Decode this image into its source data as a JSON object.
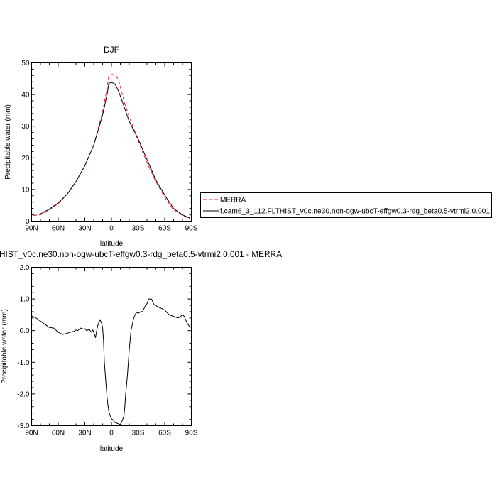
{
  "colors": {
    "merra": "#e8212a",
    "model": "#000000",
    "axes": "#000000",
    "legend_border": "#000000"
  },
  "chart_data": [
    {
      "type": "line",
      "title": "DJF",
      "xlabel": "latitude",
      "ylabel": "Precipitable water (mm)",
      "xlim": [
        90,
        -90
      ],
      "ylim": [
        0,
        50
      ],
      "xtick_labels": [
        "90N",
        "60N",
        "30N",
        "0",
        "30S",
        "60S",
        "90S"
      ],
      "ytick_labels": [
        "0",
        "10",
        "20",
        "30",
        "40",
        "50"
      ],
      "legend": {
        "placement": "right",
        "entries": [
          "MERRA",
          "f.cam6_3_112.FLTHIST_v0c.ne30.non-ogw-ubcT-effgw0.3-rdg_beta0.5-vtrmi2.0.001"
        ]
      },
      "series": [
        {
          "name": "MERRA",
          "style": "dashed",
          "color": "#e8212a",
          "x": [
            88,
            80,
            70,
            60,
            50,
            40,
            30,
            20,
            10,
            5,
            3,
            0,
            -3,
            -5,
            -8,
            -10,
            -15,
            -20,
            -30,
            -40,
            -50,
            -60,
            -70,
            -80,
            -88
          ],
          "y": [
            1.8,
            2.0,
            3.5,
            5.5,
            8.5,
            12.5,
            17.5,
            24.0,
            34.5,
            42.0,
            46.0,
            46.3,
            46.3,
            46.0,
            44.5,
            42.5,
            37.0,
            33.0,
            25.5,
            18.5,
            12.5,
            7.5,
            3.5,
            1.8,
            0.8
          ]
        },
        {
          "name": "f.cam6_3_112.FLTHIST_v0c.ne30.non-ogw-ubcT-effgw0.3-rdg_beta0.5-vtrmi2.0.001",
          "style": "solid",
          "color": "#000000",
          "x": [
            88,
            80,
            70,
            60,
            50,
            40,
            30,
            20,
            10,
            5,
            3,
            0,
            -3,
            -5,
            -8,
            -10,
            -15,
            -20,
            -30,
            -40,
            -50,
            -60,
            -70,
            -80,
            -88
          ],
          "y": [
            2.2,
            2.3,
            3.8,
            5.8,
            8.5,
            12.5,
            17.5,
            24.0,
            33.5,
            40.0,
            43.5,
            43.8,
            43.5,
            42.8,
            41.0,
            39.5,
            35.5,
            31.5,
            26.0,
            19.5,
            13.0,
            8.2,
            4.0,
            2.0,
            1.0
          ]
        }
      ]
    },
    {
      "type": "line",
      "title": "HIST_v0c.ne30.non-ogw-ubcT-effgw0.3-rdg_beta0.5-vtrmi2.0.001 - MERRA",
      "xlabel": "latitude",
      "ylabel": "Precipitable water (mm)",
      "xlim": [
        90,
        -90
      ],
      "ylim": [
        -3.0,
        2.0
      ],
      "xtick_labels": [
        "90N",
        "60N",
        "30N",
        "0",
        "30S",
        "60S",
        "90S"
      ],
      "ytick_labels": [
        "-3.0",
        "-2.0",
        "-1.0",
        "0.0",
        "1.0",
        "2.0"
      ],
      "series": [
        {
          "style": "solid",
          "color": "#000000",
          "x": [
            90,
            85,
            80,
            75,
            70,
            65,
            60,
            55,
            50,
            45,
            42,
            40,
            38,
            35,
            32,
            30,
            28,
            25,
            23,
            21,
            20,
            18,
            16,
            15,
            13,
            11,
            10,
            9,
            8,
            6,
            5,
            4,
            3,
            2,
            0,
            -2,
            -4,
            -6,
            -8,
            -10,
            -12,
            -14,
            -15,
            -16,
            -18,
            -20,
            -22,
            -25,
            -28,
            -30,
            -33,
            -35,
            -38,
            -40,
            -42,
            -45,
            -48,
            -50,
            -52,
            -55,
            -60,
            -65,
            -70,
            -75,
            -78,
            -80,
            -82,
            -85,
            -88,
            -90
          ],
          "y": [
            0.47,
            0.4,
            0.3,
            0.2,
            0.1,
            0.08,
            -0.05,
            -0.12,
            -0.08,
            -0.04,
            -0.02,
            0.02,
            0.0,
            0.08,
            0.05,
            0.06,
            0.0,
            0.04,
            -0.05,
            0.02,
            -0.05,
            -0.22,
            0.1,
            0.2,
            0.35,
            0.22,
            0.1,
            -0.3,
            -1.0,
            -1.75,
            -2.1,
            -2.35,
            -2.55,
            -2.65,
            -2.78,
            -2.82,
            -2.9,
            -2.92,
            -2.94,
            -2.97,
            -2.85,
            -2.7,
            -2.4,
            -2.0,
            -1.4,
            -0.6,
            0.0,
            0.4,
            0.58,
            0.55,
            0.6,
            0.6,
            0.78,
            0.85,
            1.0,
            1.0,
            0.82,
            0.8,
            0.75,
            0.72,
            0.65,
            0.5,
            0.45,
            0.4,
            0.45,
            0.5,
            0.45,
            0.25,
            0.12,
            0.1
          ]
        }
      ]
    }
  ]
}
